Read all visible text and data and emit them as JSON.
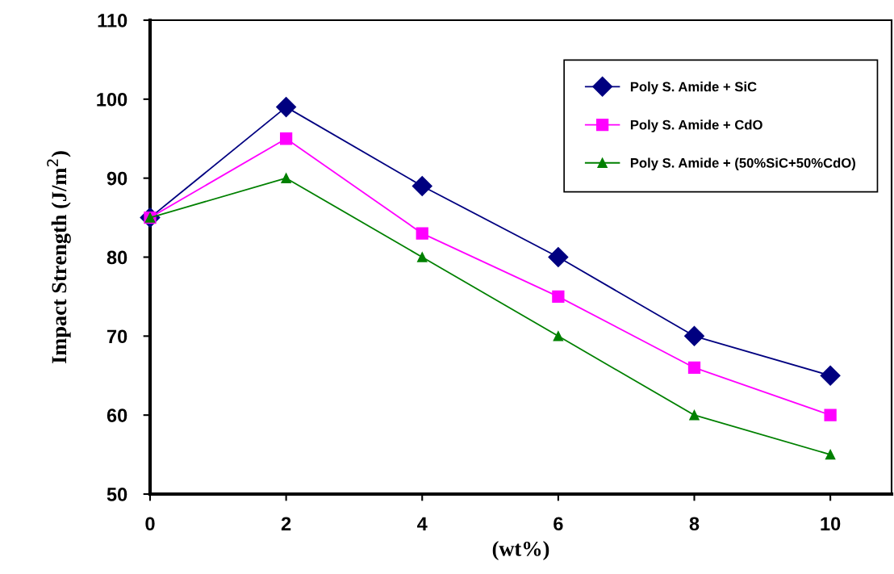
{
  "chart_data": {
    "type": "line",
    "xlabel": "(wt%)",
    "ylabel": "Impact Strength (J/m$^{2}$)",
    "x": [
      0,
      2,
      4,
      6,
      8,
      10
    ],
    "series": [
      {
        "name": "Poly S. Amide + SiC",
        "color": "#000080",
        "marker": "diamond",
        "values": [
          85,
          99,
          89,
          80,
          70,
          65
        ]
      },
      {
        "name": "Poly S. Amide + CdO",
        "color": "#ff00ff",
        "marker": "square",
        "values": [
          85,
          95,
          83,
          75,
          66,
          60
        ]
      },
      {
        "name": "Poly S. Amide + (50%SiC+50%CdO)",
        "color": "#008000",
        "marker": "triangle",
        "values": [
          85,
          90,
          80,
          70,
          60,
          55
        ]
      }
    ],
    "xlim": [
      0,
      10.9
    ],
    "xticks": [
      0,
      2,
      4,
      6,
      8,
      10
    ],
    "ylim": [
      50,
      110
    ],
    "yticks": [
      50,
      60,
      70,
      80,
      90,
      100,
      110
    ],
    "grid": false,
    "legend": "top right",
    "line_style": "solid"
  }
}
